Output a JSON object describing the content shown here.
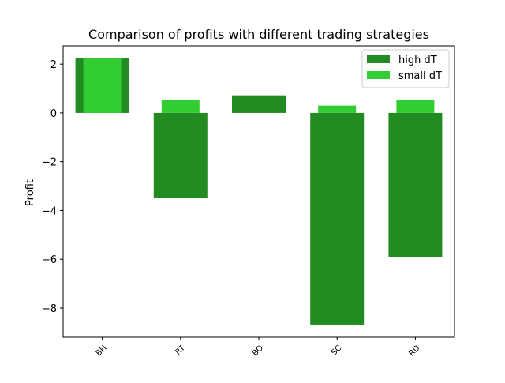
{
  "chart_data": {
    "type": "bar",
    "title": "Comparison of profits with different trading strategies",
    "xlabel": "",
    "ylabel": "Profit",
    "categories": [
      "BH",
      "RT",
      "BO",
      "SC",
      "RD"
    ],
    "series": [
      {
        "name": "high dT",
        "values": [
          2.25,
          -3.5,
          0.72,
          -8.68,
          -5.9
        ],
        "color": "#228b22"
      },
      {
        "name": "small dT",
        "values": [
          2.25,
          0.55,
          0.0,
          0.3,
          0.55
        ],
        "color": "#32cd32"
      }
    ],
    "yticks": [
      2,
      0,
      -2,
      -4,
      -6,
      -8
    ],
    "ytick_labels": [
      "2",
      "0",
      "−2",
      "−4",
      "−6",
      "−8"
    ],
    "ylim": [
      -9.2,
      2.75
    ],
    "grid": false,
    "legend_position": "top-right",
    "xtick_rotation": "45"
  }
}
